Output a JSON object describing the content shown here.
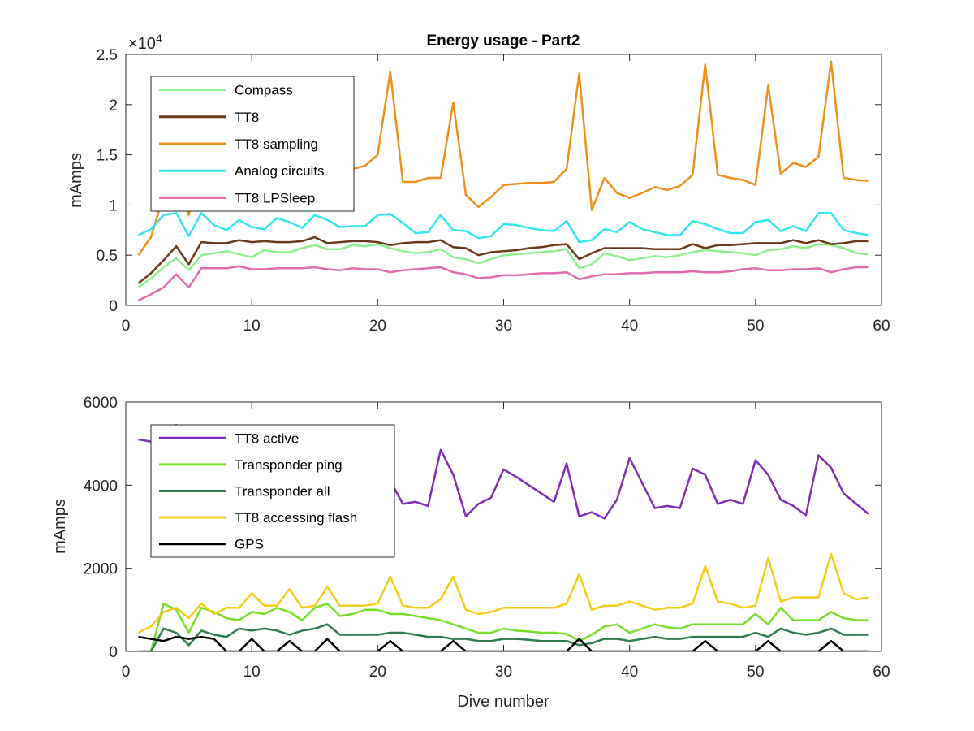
{
  "chart_data": [
    {
      "type": "line",
      "title": "Energy usage - Part2",
      "xlabel": "",
      "ylabel": "mAmps",
      "exponent_label": "×10",
      "exponent_power": "4",
      "xlim": [
        0,
        60
      ],
      "ylim": [
        0,
        25000
      ],
      "x_ticks": [
        "0",
        "10",
        "20",
        "30",
        "40",
        "50",
        "60"
      ],
      "y_ticks": [
        "0",
        "0.5",
        "1",
        "1.5",
        "2",
        "2.5"
      ],
      "legend_position": "top-left",
      "grid": false,
      "x": [
        1,
        2,
        3,
        4,
        5,
        6,
        7,
        8,
        9,
        10,
        11,
        12,
        13,
        14,
        15,
        16,
        17,
        18,
        19,
        20,
        21,
        22,
        23,
        24,
        25,
        26,
        27,
        28,
        29,
        30,
        31,
        32,
        33,
        34,
        35,
        36,
        37,
        38,
        39,
        40,
        41,
        42,
        43,
        44,
        45,
        46,
        47,
        48,
        49,
        50,
        51,
        52,
        53,
        54,
        55,
        56,
        57,
        58,
        59
      ],
      "series": [
        {
          "name": "Compass",
          "color": "#90ee90",
          "values": [
            1800,
            2700,
            3800,
            4700,
            3500,
            5000,
            5200,
            5400,
            5100,
            4800,
            5500,
            5300,
            5300,
            5700,
            6000,
            5600,
            5600,
            6000,
            5900,
            6100,
            5700,
            5400,
            5200,
            5300,
            5600,
            4800,
            4600,
            4200,
            4600,
            5000,
            5100,
            5200,
            5300,
            5400,
            5600,
            3700,
            4100,
            5200,
            4900,
            4500,
            4700,
            4900,
            4800,
            5000,
            5300,
            5500,
            5400,
            5300,
            5200,
            5000,
            5500,
            5600,
            5900,
            5700,
            6100,
            6000,
            5700,
            5200,
            5100
          ]
        },
        {
          "name": "TT8",
          "color": "#6b3a1a",
          "values": [
            2200,
            3200,
            4500,
            5900,
            4100,
            6300,
            6200,
            6200,
            6500,
            6300,
            6400,
            6300,
            6300,
            6400,
            6800,
            6200,
            6300,
            6400,
            6400,
            6300,
            6000,
            6200,
            6300,
            6300,
            6500,
            5800,
            5700,
            5000,
            5300,
            5400,
            5500,
            5700,
            5800,
            6000,
            6100,
            4600,
            5200,
            5700,
            5700,
            5700,
            5700,
            5600,
            5600,
            5600,
            6100,
            5700,
            6000,
            6000,
            6100,
            6200,
            6200,
            6200,
            6500,
            6200,
            6500,
            6100,
            6200,
            6400,
            6400
          ]
        },
        {
          "name": "TT8 sampling",
          "color": "#f0901c",
          "values": [
            5000,
            6800,
            11000,
            13500,
            9000,
            14500,
            13900,
            15000,
            14600,
            14500,
            15200,
            15100,
            15000,
            14400,
            15200,
            14500,
            14000,
            13600,
            13900,
            15000,
            23300,
            12300,
            12300,
            12700,
            12700,
            20200,
            11000,
            9800,
            10800,
            12000,
            12100,
            12200,
            12200,
            12300,
            13600,
            23100,
            9500,
            12700,
            11200,
            10700,
            11200,
            11800,
            11500,
            11900,
            13000,
            24000,
            13000,
            12700,
            12500,
            12000,
            21900,
            13100,
            14200,
            13800,
            14800,
            24300,
            12700,
            12500,
            12400
          ]
        },
        {
          "name": "Analog circuits",
          "color": "#33e6ee",
          "values": [
            7000,
            7600,
            9000,
            9200,
            6900,
            9200,
            8000,
            7500,
            8500,
            7800,
            7600,
            8700,
            8300,
            7700,
            9000,
            8500,
            7800,
            7900,
            7900,
            9000,
            9100,
            8200,
            7200,
            7300,
            9000,
            7500,
            7400,
            6700,
            6900,
            8100,
            8000,
            7700,
            7500,
            7400,
            8400,
            6300,
            6500,
            7600,
            7300,
            8300,
            7600,
            7300,
            7000,
            7000,
            8400,
            8100,
            7600,
            7200,
            7200,
            8300,
            8500,
            7400,
            7900,
            7400,
            9200,
            9200,
            7500,
            7200,
            7000
          ]
        },
        {
          "name": "TT8 LPSleep",
          "color": "#e26aae",
          "values": [
            500,
            1100,
            1800,
            3100,
            1800,
            3700,
            3700,
            3700,
            3900,
            3600,
            3600,
            3700,
            3700,
            3700,
            3800,
            3600,
            3500,
            3700,
            3600,
            3600,
            3300,
            3500,
            3600,
            3700,
            3800,
            3300,
            3100,
            2700,
            2800,
            3000,
            3000,
            3100,
            3200,
            3200,
            3300,
            2600,
            2900,
            3100,
            3100,
            3200,
            3200,
            3300,
            3300,
            3300,
            3400,
            3300,
            3300,
            3400,
            3600,
            3700,
            3500,
            3500,
            3600,
            3600,
            3700,
            3300,
            3600,
            3800,
            3800
          ]
        }
      ]
    },
    {
      "type": "line",
      "title": "",
      "xlabel": "Dive number",
      "ylabel": "mAmps",
      "xlim": [
        0,
        60
      ],
      "ylim": [
        0,
        6000
      ],
      "x_ticks": [
        "0",
        "10",
        "20",
        "30",
        "40",
        "50",
        "60"
      ],
      "y_ticks": [
        "0",
        "2000",
        "4000",
        "6000"
      ],
      "legend_position": "top-left",
      "grid": false,
      "x": [
        1,
        2,
        3,
        4,
        5,
        6,
        7,
        8,
        9,
        10,
        11,
        12,
        13,
        14,
        15,
        16,
        17,
        18,
        19,
        20,
        21,
        22,
        23,
        24,
        25,
        26,
        27,
        28,
        29,
        30,
        31,
        32,
        33,
        34,
        35,
        36,
        37,
        38,
        39,
        40,
        41,
        42,
        43,
        44,
        45,
        46,
        47,
        48,
        49,
        50,
        51,
        52,
        53,
        54,
        55,
        56,
        57,
        58,
        59
      ],
      "series": [
        {
          "name": "TT8 active",
          "color": "#7e2fb4",
          "values": [
            5100,
            5050,
            5100,
            5450,
            5000,
            5050,
            4900,
            4800,
            4750,
            4700,
            4650,
            4600,
            4550,
            4500,
            4450,
            4400,
            4350,
            4300,
            4250,
            4200,
            4100,
            3550,
            3600,
            3500,
            4850,
            4250,
            3250,
            3550,
            3700,
            4380,
            4200,
            4000,
            3800,
            3600,
            4520,
            3250,
            3350,
            3200,
            3650,
            4650,
            4050,
            3450,
            3500,
            3450,
            4400,
            4250,
            3550,
            3650,
            3550,
            4600,
            4250,
            3650,
            3500,
            3280,
            4720,
            4420,
            3800,
            3550,
            3300
          ]
        },
        {
          "name": "Transponder ping",
          "color": "#77e02a",
          "values": [
            0,
            0,
            1150,
            1000,
            450,
            1050,
            950,
            800,
            750,
            950,
            900,
            1050,
            950,
            750,
            1050,
            1150,
            850,
            900,
            1000,
            1000,
            900,
            900,
            850,
            800,
            750,
            650,
            550,
            450,
            450,
            550,
            500,
            480,
            450,
            450,
            420,
            250,
            400,
            600,
            650,
            450,
            550,
            650,
            580,
            550,
            650,
            650,
            650,
            650,
            650,
            900,
            650,
            1050,
            750,
            750,
            750,
            950,
            800,
            750,
            750
          ]
        },
        {
          "name": "Transponder all",
          "color": "#2f7c50",
          "values": [
            0,
            0,
            550,
            450,
            150,
            500,
            400,
            350,
            550,
            500,
            550,
            500,
            400,
            500,
            550,
            650,
            400,
            400,
            400,
            400,
            450,
            450,
            400,
            350,
            350,
            300,
            300,
            250,
            250,
            300,
            300,
            280,
            250,
            250,
            250,
            150,
            200,
            300,
            300,
            250,
            300,
            350,
            300,
            300,
            350,
            350,
            350,
            350,
            350,
            450,
            350,
            550,
            450,
            400,
            450,
            550,
            400,
            400,
            400
          ]
        },
        {
          "name": "TT8 accessing flash",
          "color": "#f3cd1a",
          "values": [
            450,
            600,
            950,
            1050,
            800,
            1150,
            900,
            1050,
            1050,
            1400,
            1100,
            1100,
            1500,
            1050,
            1100,
            1550,
            1100,
            1100,
            1100,
            1150,
            1800,
            1100,
            1050,
            1050,
            1250,
            1800,
            1000,
            900,
            950,
            1050,
            1050,
            1050,
            1050,
            1050,
            1150,
            1850,
            1000,
            1100,
            1100,
            1200,
            1100,
            1000,
            1050,
            1050,
            1150,
            2050,
            1200,
            1150,
            1050,
            1100,
            2250,
            1200,
            1300,
            1300,
            1300,
            2350,
            1400,
            1250,
            1300
          ]
        },
        {
          "name": "GPS",
          "color": "#000000",
          "values": [
            350,
            300,
            250,
            350,
            300,
            350,
            300,
            0,
            0,
            300,
            0,
            0,
            250,
            0,
            0,
            300,
            0,
            0,
            0,
            0,
            250,
            0,
            0,
            0,
            0,
            250,
            0,
            0,
            0,
            0,
            0,
            0,
            0,
            0,
            0,
            300,
            0,
            0,
            0,
            0,
            0,
            0,
            0,
            0,
            0,
            250,
            0,
            0,
            0,
            0,
            250,
            0,
            0,
            0,
            0,
            250,
            0,
            0,
            0
          ]
        }
      ]
    }
  ]
}
